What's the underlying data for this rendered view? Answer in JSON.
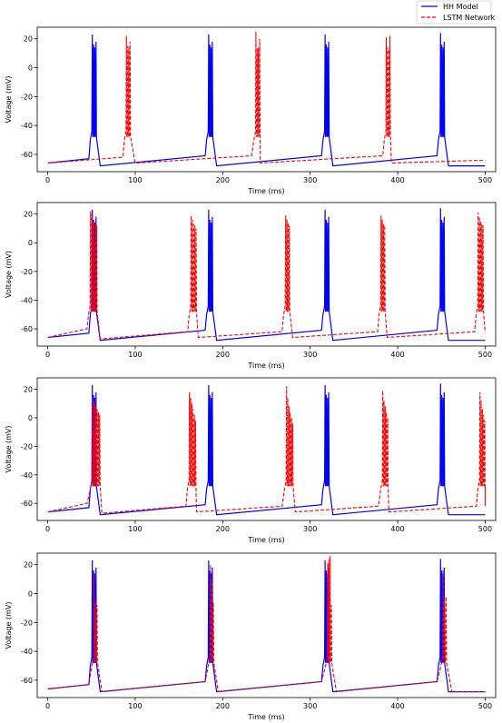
{
  "legend": {
    "placement": "top-right",
    "entries": [
      {
        "label": "HH Model",
        "color": "#0000ff",
        "style": "solid"
      },
      {
        "label": "LSTM Network",
        "color": "#ff0000",
        "style": "dashed"
      }
    ]
  },
  "chart_data": [
    {
      "type": "line",
      "xlabel": "Time (ms)",
      "ylabel": "Voltage (mV)",
      "xlim": [
        -12,
        512
      ],
      "ylim": [
        -72,
        28
      ],
      "xticks": [
        0,
        100,
        200,
        300,
        400,
        500
      ],
      "yticks": [
        -60,
        -40,
        -20,
        0,
        20
      ],
      "grid": false,
      "series": [
        {
          "name": "HH Model",
          "color": "#0000ff",
          "dash": false,
          "baseline": [
            [
              0,
              -66
            ],
            [
              47,
              -63
            ],
            [
              60,
              -68
            ],
            [
              180,
              -61
            ],
            [
              193,
              -68
            ],
            [
              313,
              -61
            ],
            [
              326,
              -68
            ],
            [
              445,
              -61
            ],
            [
              458,
              -68
            ],
            [
              500,
              -68
            ]
          ],
          "bursts": [
            {
              "t": 51,
              "peaks": [
                23,
                16,
                14,
                18
              ]
            },
            {
              "t": 184,
              "peaks": [
                23,
                16,
                14,
                18
              ]
            },
            {
              "t": 317,
              "peaks": [
                23,
                16,
                14,
                18
              ]
            },
            {
              "t": 449,
              "peaks": [
                24,
                16,
                14,
                18
              ]
            }
          ]
        },
        {
          "name": "LSTM Network",
          "color": "#ff0000",
          "dash": true,
          "baseline": [
            [
              0,
              -66
            ],
            [
              86,
              -62
            ],
            [
              100,
              -66
            ],
            [
              233,
              -61
            ],
            [
              243,
              -66
            ],
            [
              383,
              -61
            ],
            [
              393,
              -66
            ],
            [
              500,
              -64
            ]
          ],
          "bursts": [
            {
              "t": 90,
              "peaks": [
                22,
                15,
                14,
                18
              ]
            },
            {
              "t": 238,
              "peaks": [
                25,
                13,
                14,
                20
              ]
            },
            {
              "t": 387,
              "peaks": [
                21,
                14,
                13,
                22
              ]
            }
          ]
        }
      ]
    },
    {
      "type": "line",
      "xlabel": "Time (ms)",
      "ylabel": "Voltage (mV)",
      "xlim": [
        -12,
        512
      ],
      "ylim": [
        -72,
        28
      ],
      "xticks": [
        0,
        100,
        200,
        300,
        400,
        500
      ],
      "yticks": [
        -60,
        -40,
        -20,
        0,
        20
      ],
      "grid": false,
      "series": [
        {
          "name": "HH Model",
          "color": "#0000ff",
          "dash": false,
          "baseline": [
            [
              0,
              -66
            ],
            [
              47,
              -63
            ],
            [
              60,
              -68
            ],
            [
              180,
              -61
            ],
            [
              193,
              -68
            ],
            [
              313,
              -61
            ],
            [
              326,
              -68
            ],
            [
              445,
              -61
            ],
            [
              458,
              -68
            ],
            [
              500,
              -68
            ]
          ],
          "bursts": [
            {
              "t": 51,
              "peaks": [
                23,
                16,
                14,
                18
              ]
            },
            {
              "t": 184,
              "peaks": [
                23,
                16,
                14,
                18
              ]
            },
            {
              "t": 317,
              "peaks": [
                23,
                16,
                14,
                18
              ]
            },
            {
              "t": 449,
              "peaks": [
                24,
                16,
                14,
                18
              ]
            }
          ]
        },
        {
          "name": "LSTM Network",
          "color": "#ff0000",
          "dash": true,
          "baseline": [
            [
              0,
              -66
            ],
            [
              45,
              -60
            ],
            [
              60,
              -67
            ],
            [
              160,
              -62
            ],
            [
              172,
              -66
            ],
            [
              268,
              -62
            ],
            [
              280,
              -66
            ],
            [
              377,
              -62
            ],
            [
              388,
              -66
            ],
            [
              488,
              -62
            ],
            [
              500,
              -62
            ]
          ],
          "bursts": [
            {
              "t": 49,
              "peaks": [
                22,
                20,
                16,
                14,
                13,
                12
              ]
            },
            {
              "t": 164,
              "peaks": [
                19,
                16,
                13,
                12,
                10
              ]
            },
            {
              "t": 272,
              "peaks": [
                19,
                16,
                14,
                12
              ]
            },
            {
              "t": 381,
              "peaks": [
                19,
                16,
                13,
                12
              ]
            },
            {
              "t": 492,
              "peaks": [
                21,
                18,
                15,
                13,
                12
              ]
            }
          ]
        }
      ]
    },
    {
      "type": "line",
      "xlabel": "Time (ms)",
      "ylabel": "Voltage (mV)",
      "xlim": [
        -12,
        512
      ],
      "ylim": [
        -72,
        28
      ],
      "xticks": [
        0,
        100,
        200,
        300,
        400,
        500
      ],
      "yticks": [
        -60,
        -40,
        -20,
        0,
        20
      ],
      "grid": false,
      "series": [
        {
          "name": "HH Model",
          "color": "#0000ff",
          "dash": false,
          "baseline": [
            [
              0,
              -66
            ],
            [
              47,
              -63
            ],
            [
              60,
              -68
            ],
            [
              180,
              -61
            ],
            [
              193,
              -68
            ],
            [
              313,
              -61
            ],
            [
              326,
              -68
            ],
            [
              445,
              -61
            ],
            [
              458,
              -68
            ],
            [
              500,
              -68
            ]
          ],
          "bursts": [
            {
              "t": 51,
              "peaks": [
                23,
                16,
                14,
                18
              ]
            },
            {
              "t": 184,
              "peaks": [
                23,
                16,
                14,
                18
              ]
            },
            {
              "t": 317,
              "peaks": [
                23,
                16,
                14,
                18
              ]
            },
            {
              "t": 449,
              "peaks": [
                24,
                16,
                14,
                18
              ]
            }
          ]
        },
        {
          "name": "LSTM Network",
          "color": "#ff0000",
          "dash": true,
          "baseline": [
            [
              0,
              -66
            ],
            [
              45,
              -60
            ],
            [
              62,
              -67
            ],
            [
              158,
              -62
            ],
            [
              170,
              -66
            ],
            [
              268,
              -62
            ],
            [
              283,
              -66
            ],
            [
              378,
              -62
            ],
            [
              390,
              -66
            ],
            [
              490,
              -62
            ],
            [
              500,
              -62
            ]
          ],
          "bursts": [
            {
              "t": 51,
              "peaks": [
                14,
                12,
                10,
                8,
                6,
                4,
                2
              ]
            },
            {
              "t": 162,
              "peaks": [
                18,
                14,
                10,
                6,
                2,
                -2
              ]
            },
            {
              "t": 273,
              "peaks": [
                22,
                14,
                8,
                4,
                0,
                -4
              ]
            },
            {
              "t": 383,
              "peaks": [
                19,
                12,
                8,
                4,
                0
              ]
            },
            {
              "t": 494,
              "peaks": [
                18,
                12,
                6,
                2,
                -2
              ]
            }
          ]
        }
      ]
    },
    {
      "type": "line",
      "xlabel": "Time (ms)",
      "ylabel": "Voltage (mV)",
      "xlim": [
        -12,
        512
      ],
      "ylim": [
        -72,
        28
      ],
      "xticks": [
        0,
        100,
        200,
        300,
        400,
        500
      ],
      "yticks": [
        -60,
        -40,
        -20,
        0,
        20
      ],
      "grid": false,
      "series": [
        {
          "name": "HH Model",
          "color": "#0000ff",
          "dash": false,
          "baseline": [
            [
              0,
              -66
            ],
            [
              47,
              -63
            ],
            [
              60,
              -68
            ],
            [
              180,
              -61
            ],
            [
              193,
              -68
            ],
            [
              313,
              -61
            ],
            [
              326,
              -68
            ],
            [
              445,
              -61
            ],
            [
              458,
              -68
            ],
            [
              500,
              -68
            ]
          ],
          "bursts": [
            {
              "t": 51,
              "peaks": [
                23,
                16,
                14,
                18
              ]
            },
            {
              "t": 184,
              "peaks": [
                23,
                16,
                14,
                18
              ]
            },
            {
              "t": 317,
              "peaks": [
                23,
                16,
                14,
                18
              ]
            },
            {
              "t": 449,
              "peaks": [
                24,
                16,
                14,
                18
              ]
            }
          ]
        },
        {
          "name": "LSTM Network",
          "color": "#ff0000",
          "dash": true,
          "baseline": [
            [
              0,
              -66
            ],
            [
              47,
              -63
            ],
            [
              62,
              -68
            ],
            [
              180,
              -61
            ],
            [
              195,
              -68
            ],
            [
              313,
              -61
            ],
            [
              330,
              -68
            ],
            [
              445,
              -61
            ],
            [
              462,
              -68
            ],
            [
              500,
              -68
            ]
          ],
          "bursts": [
            {
              "t": 53,
              "peaks": [
                14,
                -6,
                -8
              ]
            },
            {
              "t": 186,
              "peaks": [
                20,
                10,
                -6
              ]
            },
            {
              "t": 320,
              "peaks": [
                21,
                24,
                26,
                -8
              ]
            },
            {
              "t": 452,
              "peaks": [
                16,
                -4,
                -2
              ]
            }
          ]
        }
      ]
    }
  ]
}
